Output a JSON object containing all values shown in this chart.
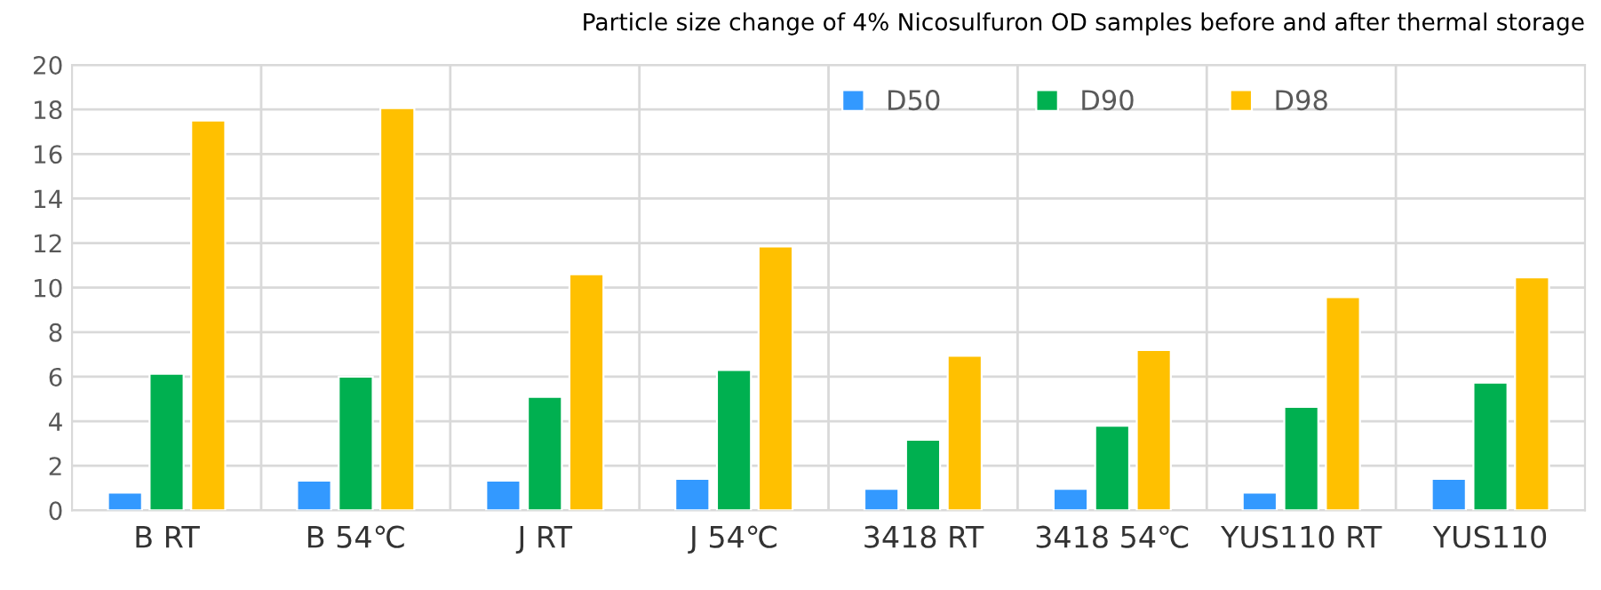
{
  "chart_data": {
    "type": "bar",
    "title": "Particle size change of 4% Nicosulfuron OD samples before and after thermal storage",
    "categories": [
      "B RT",
      "B 54℃",
      "J RT",
      "J 54℃",
      "3418 RT",
      "3418 54℃",
      "YUS110 RT",
      "YUS110"
    ],
    "series": [
      {
        "name": "D50",
        "color": "#3399ff",
        "values": [
          0.8,
          1.34,
          1.34,
          1.42,
          0.97,
          0.97,
          0.8,
          1.42
        ]
      },
      {
        "name": "D90",
        "color": "#00b050",
        "values": [
          6.13,
          6.0,
          5.1,
          6.3,
          3.17,
          3.8,
          4.65,
          5.73
        ]
      },
      {
        "name": "D98",
        "color": "#ffc000",
        "values": [
          17.5,
          18.06,
          10.6,
          11.85,
          6.94,
          7.2,
          9.57,
          10.46
        ]
      }
    ],
    "ylim": [
      0,
      20
    ],
    "yticks": [
      0,
      2,
      4,
      6,
      8,
      10,
      12,
      14,
      16,
      18,
      20
    ],
    "grid": true,
    "legend": "top"
  }
}
